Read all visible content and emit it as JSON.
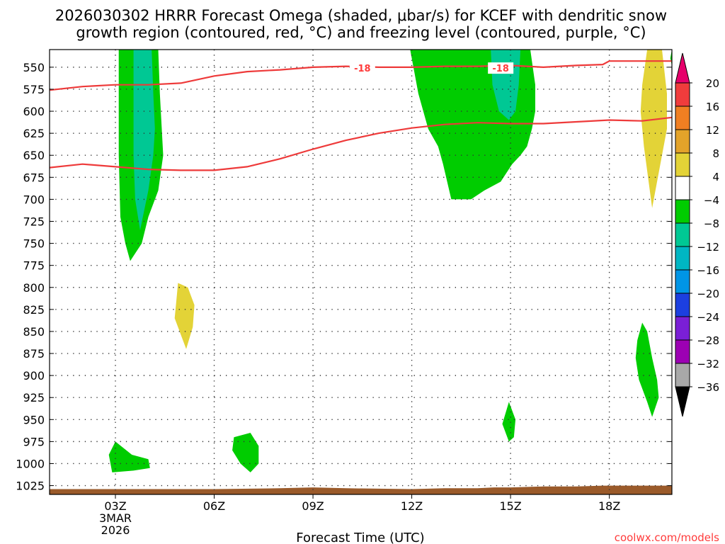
{
  "chart_data": {
    "type": "contour",
    "title_line1": "2026030302 HRRR Forecast Omega (shaded, μbar/s) for KCEF with dendritic snow",
    "title_line2": "growth region (contoured, red, °C) and freezing level (contoured, purple, °C)",
    "xlabel": "Forecast Time (UTC)",
    "ylabel": "",
    "xlim": [
      1.0,
      19.9
    ],
    "ylim": [
      1035,
      530
    ],
    "x_ticks": [
      {
        "value": 3,
        "label": "03Z",
        "sub": [
          "3MAR",
          "2026"
        ]
      },
      {
        "value": 6,
        "label": "06Z"
      },
      {
        "value": 9,
        "label": "09Z"
      },
      {
        "value": 12,
        "label": "12Z"
      },
      {
        "value": 15,
        "label": "15Z"
      },
      {
        "value": 18,
        "label": "18Z"
      }
    ],
    "y_ticks": [
      550,
      575,
      600,
      625,
      650,
      675,
      700,
      725,
      750,
      775,
      800,
      825,
      850,
      875,
      900,
      925,
      950,
      975,
      1000,
      1025
    ],
    "colorbar": {
      "labels": [
        "20",
        "16",
        "12",
        "8",
        "4",
        "−4",
        "−8",
        "−12",
        "−16",
        "−20",
        "−24",
        "−28",
        "−32",
        "−36"
      ],
      "bands": [
        "#f03c3c",
        "#f07f22",
        "#e3a32a",
        "#e3d337",
        "#ffffff",
        "#00cc00",
        "#00c894",
        "#00b6c3",
        "#0095e6",
        "#1c3fe0",
        "#7a1fd6",
        "#9c00b3",
        "#a8a8a8"
      ],
      "top_cap_color": "#e6006b",
      "bottom_cap_color": "#000000"
    },
    "shaded_regions": [
      {
        "name": "omega-green-0303z-upper",
        "category": "-4",
        "color": "#00cc00",
        "points": [
          [
            3.1,
            530
          ],
          [
            4.3,
            530
          ],
          [
            4.35,
            580
          ],
          [
            4.45,
            650
          ],
          [
            4.3,
            690
          ],
          [
            4.0,
            720
          ],
          [
            3.8,
            750
          ],
          [
            3.45,
            770
          ],
          [
            3.3,
            750
          ],
          [
            3.15,
            720
          ],
          [
            3.1,
            650
          ]
        ]
      },
      {
        "name": "omega-teal-0303z-upper",
        "category": "-8",
        "color": "#00c894",
        "points": [
          [
            3.55,
            530
          ],
          [
            4.1,
            530
          ],
          [
            4.15,
            580
          ],
          [
            4.2,
            620
          ],
          [
            4.15,
            650
          ],
          [
            4.0,
            690
          ],
          [
            3.75,
            735
          ],
          [
            3.6,
            700
          ],
          [
            3.55,
            650
          ]
        ]
      },
      {
        "name": "omega-green-1300z-upper",
        "category": "-4",
        "color": "#00cc00",
        "points": [
          [
            11.95,
            530
          ],
          [
            15.6,
            530
          ],
          [
            15.75,
            570
          ],
          [
            15.75,
            600
          ],
          [
            15.65,
            620
          ],
          [
            15.5,
            640
          ],
          [
            15.3,
            650
          ],
          [
            15.05,
            660
          ],
          [
            14.7,
            680
          ],
          [
            14.2,
            690
          ],
          [
            13.8,
            700
          ],
          [
            13.2,
            700
          ],
          [
            12.95,
            660
          ],
          [
            12.8,
            640
          ],
          [
            12.5,
            620
          ],
          [
            12.2,
            580
          ]
        ]
      },
      {
        "name": "omega-teal-1430z-upper",
        "category": "-8",
        "color": "#00c894",
        "points": [
          [
            14.4,
            530
          ],
          [
            15.3,
            530
          ],
          [
            15.25,
            570
          ],
          [
            15.15,
            600
          ],
          [
            14.95,
            610
          ],
          [
            14.65,
            600
          ],
          [
            14.45,
            570
          ]
        ]
      },
      {
        "name": "omega-yellow-1900z-upper",
        "category": "4",
        "color": "#e3d337",
        "points": [
          [
            19.15,
            530
          ],
          [
            19.6,
            530
          ],
          [
            19.75,
            580
          ],
          [
            19.75,
            620
          ],
          [
            19.6,
            650
          ],
          [
            19.3,
            710
          ],
          [
            19.05,
            640
          ],
          [
            18.95,
            600
          ],
          [
            19.0,
            570
          ]
        ]
      },
      {
        "name": "omega-green-1940z-edge",
        "category": "-4",
        "color": "#00cc00",
        "points": [
          [
            19.9,
            530
          ],
          [
            19.9,
            548
          ],
          [
            19.85,
            540
          ]
        ]
      },
      {
        "name": "omega-yellow-0430z-mid",
        "category": "4",
        "color": "#e3d337",
        "points": [
          [
            4.9,
            795
          ],
          [
            5.2,
            800
          ],
          [
            5.4,
            820
          ],
          [
            5.35,
            845
          ],
          [
            5.15,
            870
          ],
          [
            4.95,
            850
          ],
          [
            4.8,
            835
          ],
          [
            4.85,
            815
          ]
        ]
      },
      {
        "name": "omega-green-1900z-mid",
        "category": "-4",
        "color": "#00cc00",
        "points": [
          [
            19.0,
            840
          ],
          [
            19.15,
            850
          ],
          [
            19.3,
            880
          ],
          [
            19.45,
            905
          ],
          [
            19.5,
            925
          ],
          [
            19.3,
            947
          ],
          [
            19.15,
            930
          ],
          [
            18.9,
            905
          ],
          [
            18.8,
            880
          ],
          [
            18.85,
            860
          ]
        ]
      },
      {
        "name": "omega-green-1430z-low",
        "category": "-4",
        "color": "#00cc00",
        "points": [
          [
            14.95,
            930
          ],
          [
            15.15,
            950
          ],
          [
            15.1,
            970
          ],
          [
            14.95,
            975
          ],
          [
            14.75,
            955
          ]
        ]
      },
      {
        "name": "omega-green-0300z-low",
        "category": "-4",
        "color": "#00cc00",
        "points": [
          [
            3.0,
            975
          ],
          [
            3.5,
            990
          ],
          [
            4.0,
            995
          ],
          [
            4.05,
            1005
          ],
          [
            3.55,
            1008
          ],
          [
            2.9,
            1010
          ],
          [
            2.8,
            990
          ]
        ]
      },
      {
        "name": "omega-green-0630z-low",
        "category": "-4",
        "color": "#00cc00",
        "points": [
          [
            6.6,
            970
          ],
          [
            7.1,
            965
          ],
          [
            7.35,
            980
          ],
          [
            7.35,
            1000
          ],
          [
            7.1,
            1010
          ],
          [
            6.8,
            1000
          ],
          [
            6.55,
            985
          ]
        ]
      }
    ],
    "contours": [
      {
        "name": "dgz-contour-upper",
        "color": "#ee3a3a",
        "label": "-18",
        "label_positions": [
          [
            10.5,
            551
          ],
          [
            14.7,
            551
          ]
        ],
        "points": [
          [
            1.0,
            576
          ],
          [
            2.0,
            572
          ],
          [
            3.0,
            570
          ],
          [
            4.0,
            570
          ],
          [
            5.0,
            568
          ],
          [
            6.0,
            560
          ],
          [
            7.0,
            555
          ],
          [
            8.0,
            553
          ],
          [
            9.0,
            550
          ],
          [
            10.0,
            549
          ],
          [
            11.0,
            550
          ],
          [
            12.0,
            550
          ],
          [
            13.0,
            549
          ],
          [
            14.0,
            549
          ],
          [
            15.0,
            548
          ],
          [
            16.0,
            550
          ],
          [
            17.0,
            548
          ],
          [
            17.8,
            547
          ],
          [
            18.0,
            543
          ],
          [
            19.0,
            543
          ],
          [
            19.9,
            543
          ]
        ]
      },
      {
        "name": "dgz-contour-lower",
        "color": "#ee3a3a",
        "label": "",
        "points": [
          [
            1.0,
            664
          ],
          [
            2.0,
            660
          ],
          [
            3.0,
            663
          ],
          [
            4.0,
            666
          ],
          [
            5.0,
            667
          ],
          [
            6.0,
            667
          ],
          [
            7.0,
            663
          ],
          [
            8.0,
            654
          ],
          [
            9.0,
            643
          ],
          [
            10.0,
            633
          ],
          [
            11.0,
            625
          ],
          [
            12.0,
            619
          ],
          [
            13.0,
            615
          ],
          [
            14.0,
            613
          ],
          [
            15.0,
            614
          ],
          [
            16.0,
            614
          ],
          [
            17.0,
            612
          ],
          [
            18.0,
            610
          ],
          [
            19.0,
            611
          ],
          [
            19.9,
            607
          ]
        ]
      }
    ],
    "terrain": {
      "color": "#9a5a2a",
      "points": [
        [
          1.0,
          1029
        ],
        [
          4.0,
          1029
        ],
        [
          6.0,
          1029
        ],
        [
          8.0,
          1028
        ],
        [
          9.0,
          1027
        ],
        [
          10.0,
          1028
        ],
        [
          12.0,
          1029
        ],
        [
          13.0,
          1028
        ],
        [
          14.0,
          1028
        ],
        [
          14.5,
          1027
        ],
        [
          15.0,
          1027
        ],
        [
          16.0,
          1026
        ],
        [
          17.0,
          1026
        ],
        [
          17.8,
          1025
        ],
        [
          18.0,
          1025
        ],
        [
          19.9,
          1025
        ]
      ]
    }
  },
  "watermark": "coolwx.com/models"
}
